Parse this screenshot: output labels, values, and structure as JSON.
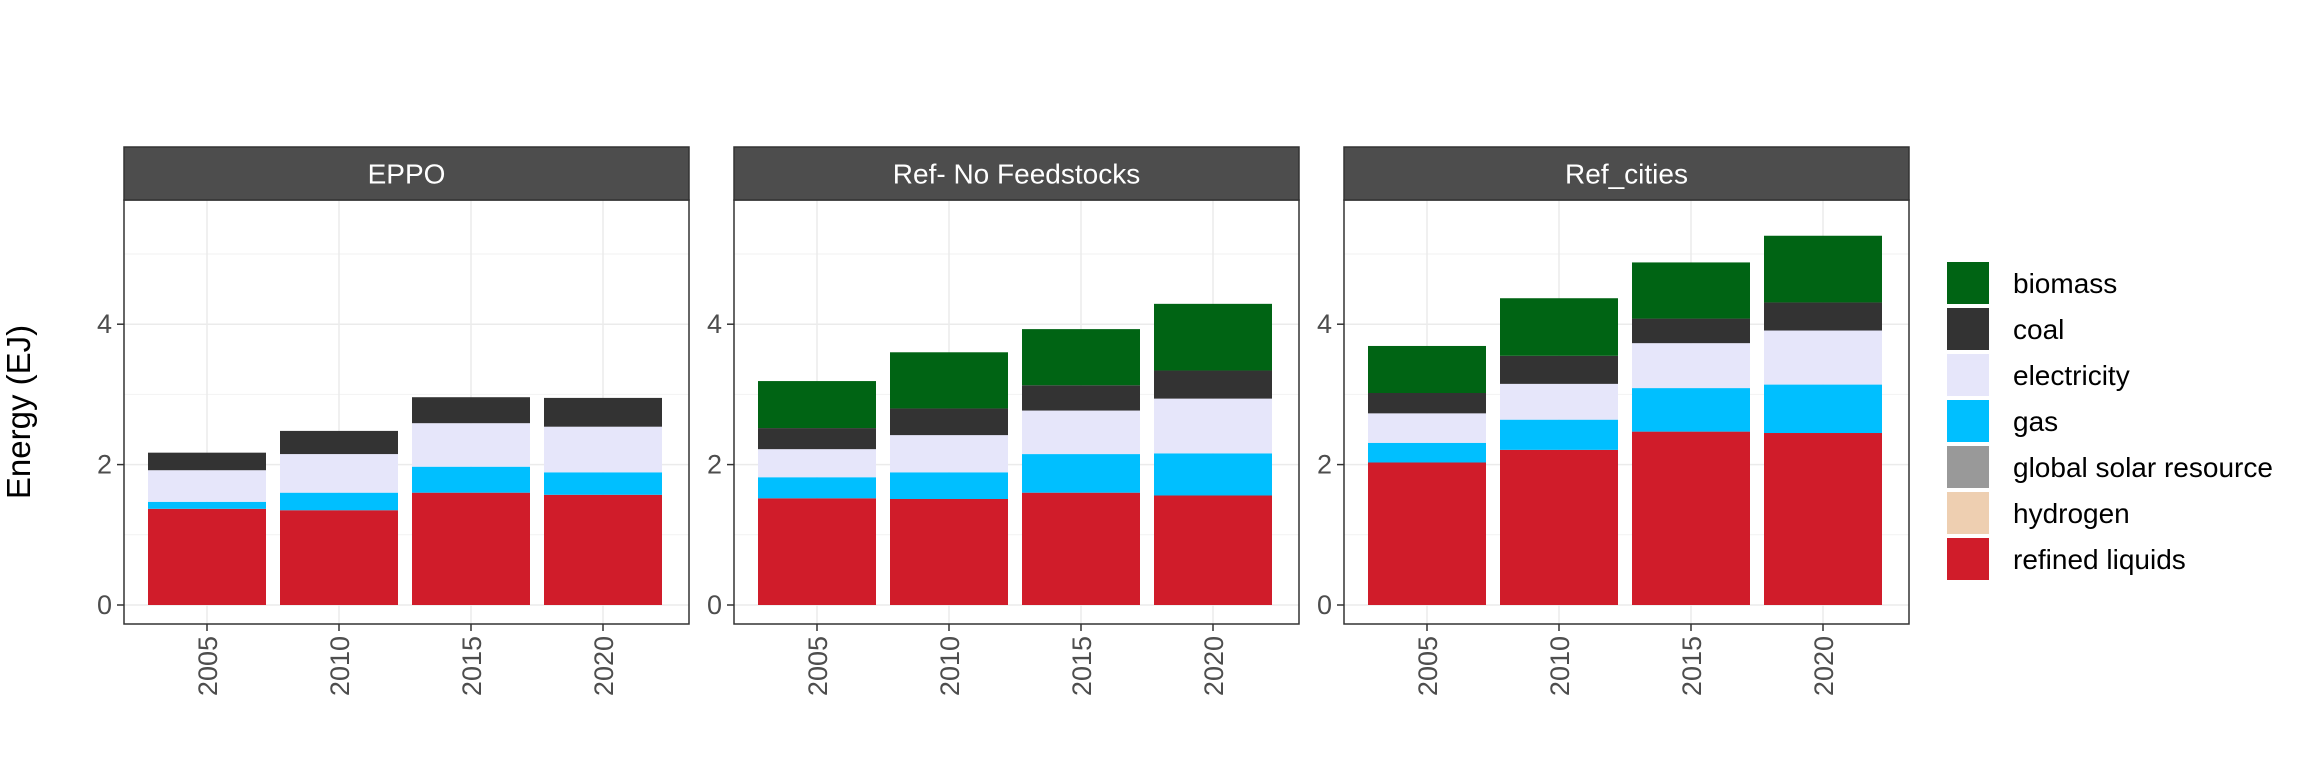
{
  "chart_data": {
    "type": "bar",
    "stacked": true,
    "ylabel": "Energy (EJ)",
    "xlabel": "",
    "ylim": [
      0,
      5.8
    ],
    "yticks": [
      0,
      2,
      4
    ],
    "categories": [
      "2005",
      "2010",
      "2015",
      "2020"
    ],
    "grid": true,
    "legend_position": "right",
    "legend": [
      {
        "name": "biomass",
        "color": "#006414"
      },
      {
        "name": "coal",
        "color": "#333333"
      },
      {
        "name": "electricity",
        "color": "#e6e6fa"
      },
      {
        "name": "gas",
        "color": "#00bfff"
      },
      {
        "name": "global solar resource",
        "color": "#999999"
      },
      {
        "name": "hydrogen",
        "color": "#eecfb1"
      },
      {
        "name": "refined liquids",
        "color": "#d01c2a"
      }
    ],
    "stack_order": [
      "refined liquids",
      "hydrogen",
      "global solar resource",
      "gas",
      "electricity",
      "coal",
      "biomass"
    ],
    "panels": [
      {
        "title": "EPPO",
        "series": [
          {
            "name": "refined liquids",
            "values": [
              1.37,
              1.35,
              1.6,
              1.57
            ]
          },
          {
            "name": "gas",
            "values": [
              0.1,
              0.25,
              0.37,
              0.32
            ]
          },
          {
            "name": "electricity",
            "values": [
              0.45,
              0.55,
              0.62,
              0.65
            ]
          },
          {
            "name": "coal",
            "values": [
              0.25,
              0.33,
              0.37,
              0.41
            ]
          },
          {
            "name": "biomass",
            "values": [
              0,
              0,
              0,
              0
            ]
          }
        ]
      },
      {
        "title": "Ref- No Feedstocks",
        "series": [
          {
            "name": "refined liquids",
            "values": [
              1.52,
              1.51,
              1.6,
              1.56
            ]
          },
          {
            "name": "gas",
            "values": [
              0.3,
              0.38,
              0.55,
              0.6
            ]
          },
          {
            "name": "electricity",
            "values": [
              0.4,
              0.53,
              0.62,
              0.78
            ]
          },
          {
            "name": "coal",
            "values": [
              0.3,
              0.38,
              0.36,
              0.4
            ]
          },
          {
            "name": "biomass",
            "values": [
              0.67,
              0.8,
              0.8,
              0.95
            ]
          }
        ]
      },
      {
        "title": "Ref_cities",
        "series": [
          {
            "name": "refined liquids",
            "values": [
              2.03,
              2.21,
              2.47,
              2.45
            ]
          },
          {
            "name": "gas",
            "values": [
              0.28,
              0.43,
              0.62,
              0.69
            ]
          },
          {
            "name": "electricity",
            "values": [
              0.42,
              0.51,
              0.64,
              0.77
            ]
          },
          {
            "name": "coal",
            "values": [
              0.29,
              0.4,
              0.35,
              0.4
            ]
          },
          {
            "name": "biomass",
            "values": [
              0.67,
              0.82,
              0.8,
              0.95
            ]
          }
        ]
      }
    ]
  }
}
